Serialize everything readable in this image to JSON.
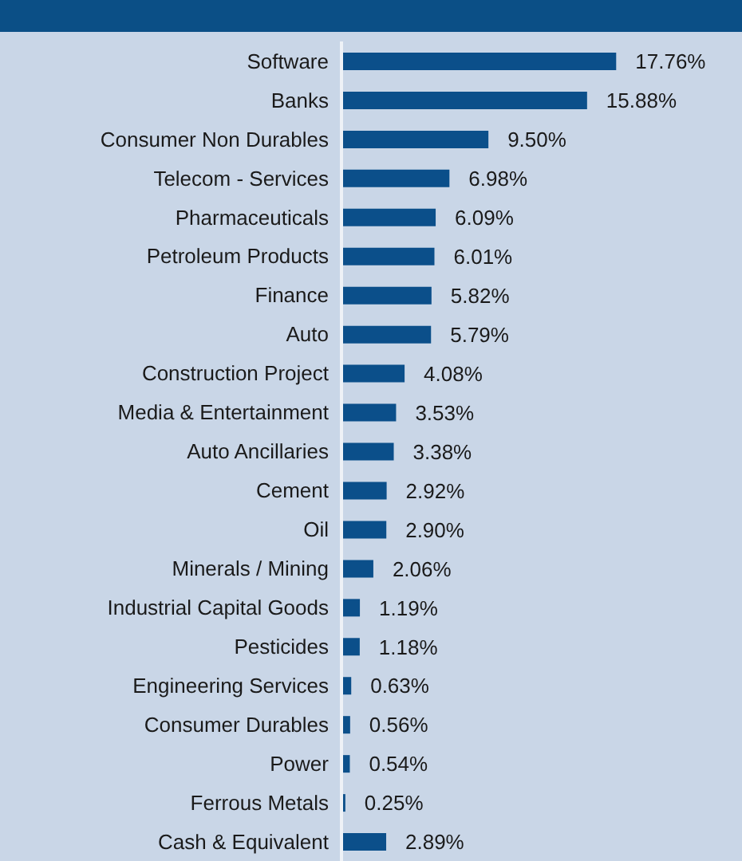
{
  "chart_data": {
    "type": "bar",
    "orientation": "horizontal",
    "categories": [
      "Software",
      "Banks",
      "Consumer Non Durables",
      "Telecom - Services",
      "Pharmaceuticals",
      "Petroleum Products",
      "Finance",
      "Auto",
      "Construction Project",
      "Media & Entertainment",
      "Auto Ancillaries",
      "Cement",
      "Oil",
      "Minerals / Mining",
      "Industrial Capital Goods",
      "Pesticides",
      "Engineering Services",
      "Consumer Durables",
      "Power",
      "Ferrous Metals",
      "Cash & Equivalent"
    ],
    "values": [
      17.76,
      15.88,
      9.5,
      6.98,
      6.09,
      6.01,
      5.82,
      5.79,
      4.08,
      3.53,
      3.38,
      2.92,
      2.9,
      2.06,
      1.19,
      1.18,
      0.63,
      0.56,
      0.54,
      0.25,
      2.89
    ],
    "value_labels": [
      "17.76%",
      "15.88%",
      "9.50%",
      "6.98%",
      "6.09%",
      "6.01%",
      "5.82%",
      "5.79%",
      "4.08%",
      "3.53%",
      "3.38%",
      "2.92%",
      "2.90%",
      "2.06%",
      "1.19%",
      "1.18%",
      "0.63%",
      "0.56%",
      "0.54%",
      "0.25%",
      "2.89%"
    ],
    "color": "#0b4f8a",
    "grid": false,
    "legend": false
  }
}
